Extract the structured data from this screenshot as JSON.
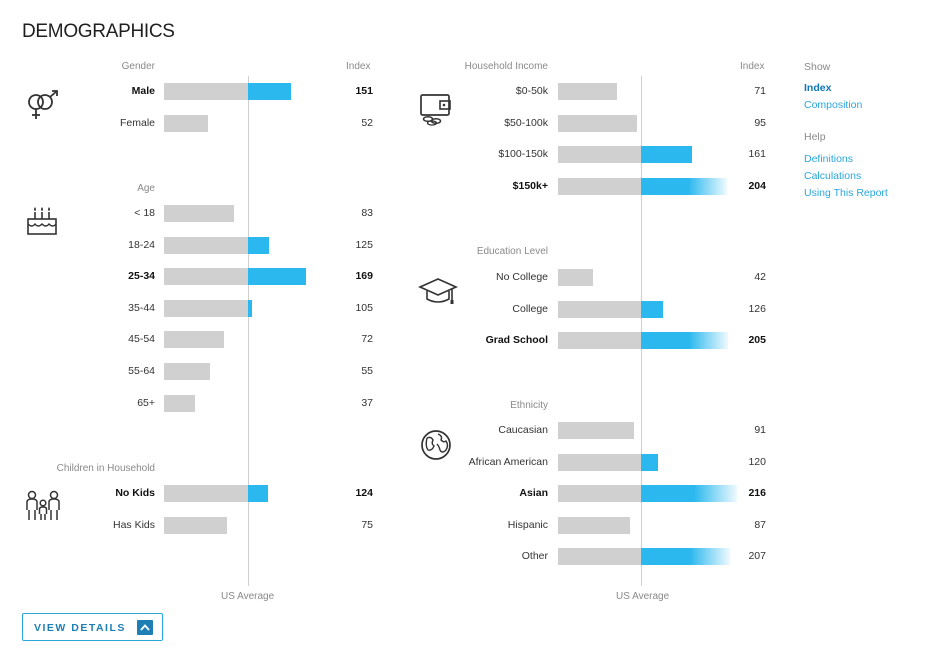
{
  "title": "DEMOGRAPHICS",
  "us_average_label": "US Average",
  "index_header": "Index",
  "sidebar": {
    "show_label": "Show",
    "show_links": [
      {
        "label": "Index",
        "active": true
      },
      {
        "label": "Composition",
        "active": false
      }
    ],
    "help_label": "Help",
    "help_links": [
      {
        "label": "Definitions"
      },
      {
        "label": "Calculations"
      },
      {
        "label": "Using This Report"
      }
    ]
  },
  "view_details": "VIEW DETAILS",
  "accent_color": "#2bb8ee",
  "bar_gray": "#d0d0d0",
  "chart_data": [
    {
      "type": "bar",
      "section": "Gender",
      "icon": "gender-icon",
      "categories": [
        "Male",
        "Female"
      ],
      "values": [
        151,
        52
      ],
      "bold": [
        true,
        false
      ],
      "reference": 100
    },
    {
      "type": "bar",
      "section": "Age",
      "icon": "birthday-cake-icon",
      "categories": [
        "< 18",
        "18-24",
        "25-34",
        "35-44",
        "45-54",
        "55-64",
        "65+"
      ],
      "values": [
        83,
        125,
        169,
        105,
        72,
        55,
        37
      ],
      "bold": [
        false,
        false,
        true,
        false,
        false,
        false,
        false
      ],
      "reference": 100
    },
    {
      "type": "bar",
      "section": "Children in Household",
      "icon": "family-icon",
      "categories": [
        "No Kids",
        "Has Kids"
      ],
      "values": [
        124,
        75
      ],
      "bold": [
        true,
        false
      ],
      "reference": 100
    },
    {
      "type": "bar",
      "section": "Household Income",
      "icon": "wallet-icon",
      "categories": [
        "$0-50k",
        "$50-100k",
        "$100-150k",
        "$150k+"
      ],
      "values": [
        71,
        95,
        161,
        204
      ],
      "bold": [
        false,
        false,
        false,
        true
      ],
      "reference": 100
    },
    {
      "type": "bar",
      "section": "Education Level",
      "icon": "graduation-cap-icon",
      "categories": [
        "No College",
        "College",
        "Grad School"
      ],
      "values": [
        42,
        126,
        205
      ],
      "bold": [
        false,
        false,
        true
      ],
      "reference": 100
    },
    {
      "type": "bar",
      "section": "Ethnicity",
      "icon": "globe-icon",
      "categories": [
        "Caucasian",
        "African American",
        "Asian",
        "Hispanic",
        "Other"
      ],
      "values": [
        91,
        120,
        216,
        87,
        207
      ],
      "bold": [
        false,
        false,
        true,
        false,
        false
      ],
      "reference": 100
    }
  ]
}
